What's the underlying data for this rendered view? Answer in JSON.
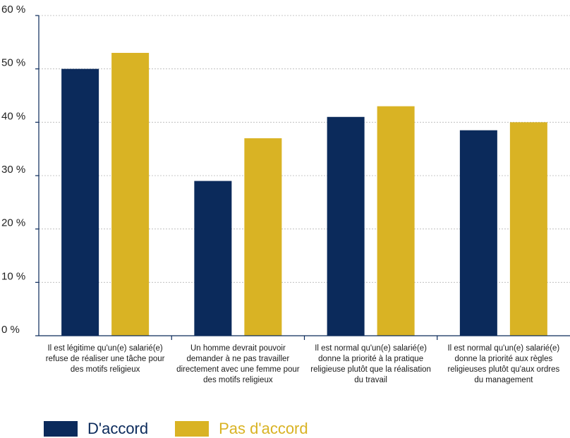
{
  "chart_data": {
    "type": "bar",
    "categories": [
      "Il est légitime qu'un(e) salarié(e) refuse de réaliser une tâche pour des motifs religieux",
      "Un homme devrait pouvoir demander à ne pas travailler directement avec une femme pour des motifs religieux",
      "Il est normal qu'un(e) salarié(e) donne la priorité à la pratique religieuse plutôt que la réalisation du travail",
      "Il est normal qu'un(e) salarié(e) donne la priorité aux règles religieuses plutôt qu'aux ordres du management"
    ],
    "category_lines": [
      [
        "Il est légitime qu'un(e) salarié(e)",
        "refuse de réaliser une tâche pour",
        "des motifs religieux"
      ],
      [
        "Un homme devrait pouvoir",
        "demander à ne pas travailler",
        "directement avec une femme pour",
        "des motifs religieux"
      ],
      [
        "Il est normal qu'un(e) salarié(e)",
        "donne la priorité à la pratique",
        "religieuse plutôt que la réalisation",
        "du travail"
      ],
      [
        "Il est normal qu'un(e) salarié(e)",
        "donne la priorité aux règles",
        "religieuses plutôt qu'aux ordres",
        "du management"
      ]
    ],
    "series": [
      {
        "name": "D'accord",
        "color": "#0b2a5b",
        "values": [
          50,
          29,
          41,
          38.5
        ]
      },
      {
        "name": "Pas d'accord",
        "color": "#d9b324",
        "values": [
          53,
          37,
          43,
          40
        ]
      }
    ],
    "ylim": [
      0,
      60
    ],
    "yticks": [
      0,
      10,
      20,
      30,
      40,
      50,
      60
    ],
    "ytick_labels": [
      "0 %",
      "10 %",
      "20 %",
      "30 %",
      "40 %",
      "50 %",
      "60 %"
    ],
    "grid": true,
    "legend_position": "bottom-left"
  }
}
